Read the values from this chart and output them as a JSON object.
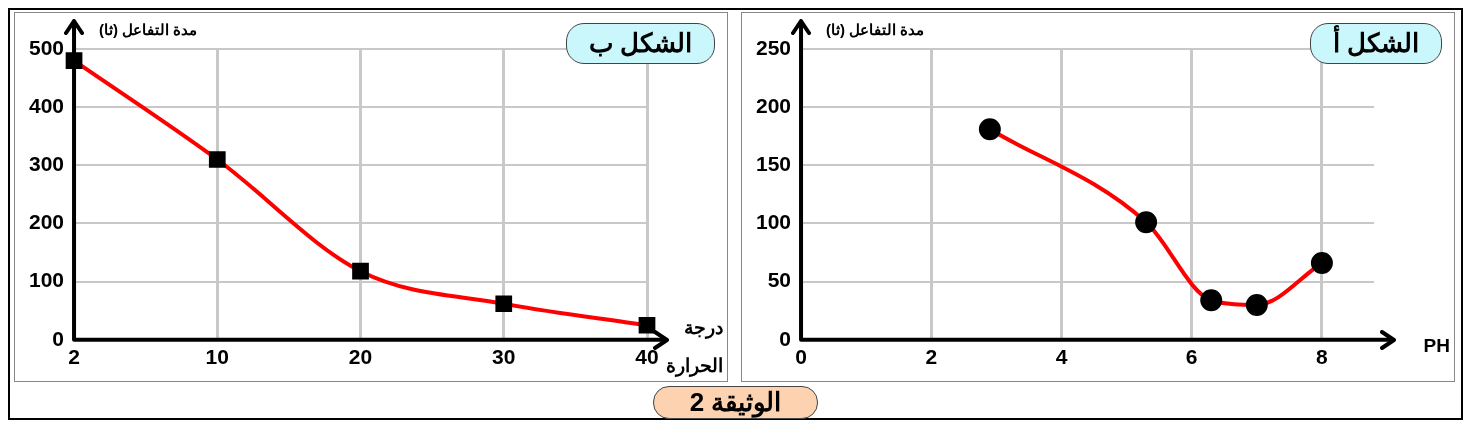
{
  "chart_data": [
    {
      "type": "line",
      "title": "الشكل أ",
      "xlabel": "PH",
      "ylabel": "مدة التفاعل (ثا)",
      "x": [
        2.9,
        5.3,
        6.3,
        7,
        8
      ],
      "series": [
        {
          "color": "#ff0000",
          "values": [
            181,
            101,
            34,
            30,
            66
          ]
        }
      ],
      "xlim": [
        0,
        8.8
      ],
      "xticks": [
        0,
        2,
        4,
        6,
        8
      ],
      "ylim": [
        0,
        250
      ],
      "yticks": [
        0,
        50,
        100,
        150,
        200,
        250
      ],
      "grid": true,
      "marker": "circle",
      "annotations": [
        "الوثيقة 2"
      ]
    },
    {
      "type": "line",
      "title": "الشكل ب",
      "xlabel": "درجة الحرارة",
      "ylabel": "مدة التفاعل (ثا)",
      "categories": [
        "2",
        "10",
        "20",
        "30",
        "40"
      ],
      "series": [
        {
          "color": "#ff0000",
          "values": [
            480,
            310,
            118,
            62,
            25
          ]
        }
      ],
      "ylim": [
        0,
        500
      ],
      "yticks": [
        0,
        100,
        200,
        300,
        400,
        500
      ],
      "grid": true,
      "marker": "square"
    }
  ]
}
